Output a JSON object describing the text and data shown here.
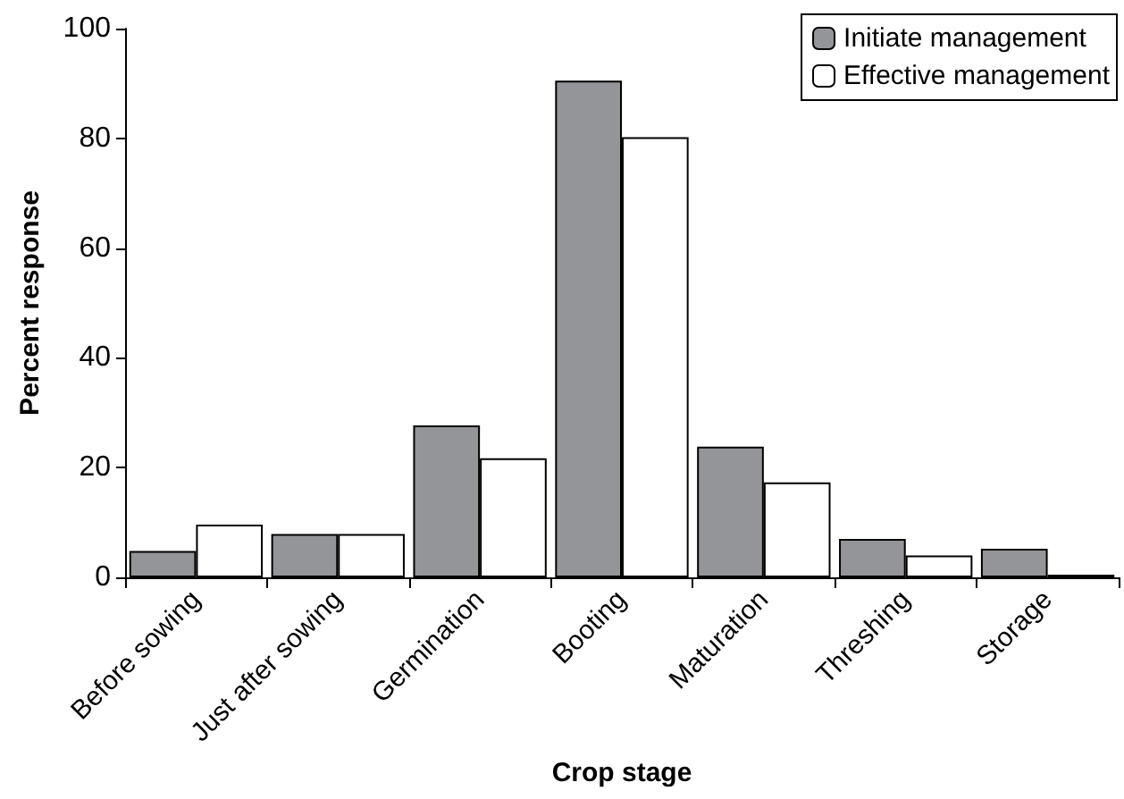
{
  "chart_data": {
    "type": "bar",
    "xlabel": "Crop stage",
    "ylabel": "Percent response",
    "categories": [
      "Before sowing",
      "Just after sowing",
      "Germination",
      "Booting",
      "Maturation",
      "Threshing",
      "Storage"
    ],
    "series": [
      {
        "name": "Initiate management",
        "color": "#939598",
        "values": [
          4.8,
          7.9,
          27.7,
          90.5,
          23.8,
          7.0,
          5.2
        ]
      },
      {
        "name": "Effective management",
        "color": "#ffffff",
        "values": [
          9.6,
          7.9,
          21.7,
          80.2,
          17.3,
          4.0,
          0.5
        ]
      }
    ],
    "ylim": [
      0,
      100
    ],
    "yticks": [
      0,
      20,
      40,
      60,
      80,
      100
    ],
    "grid": false,
    "legend": "top right"
  }
}
